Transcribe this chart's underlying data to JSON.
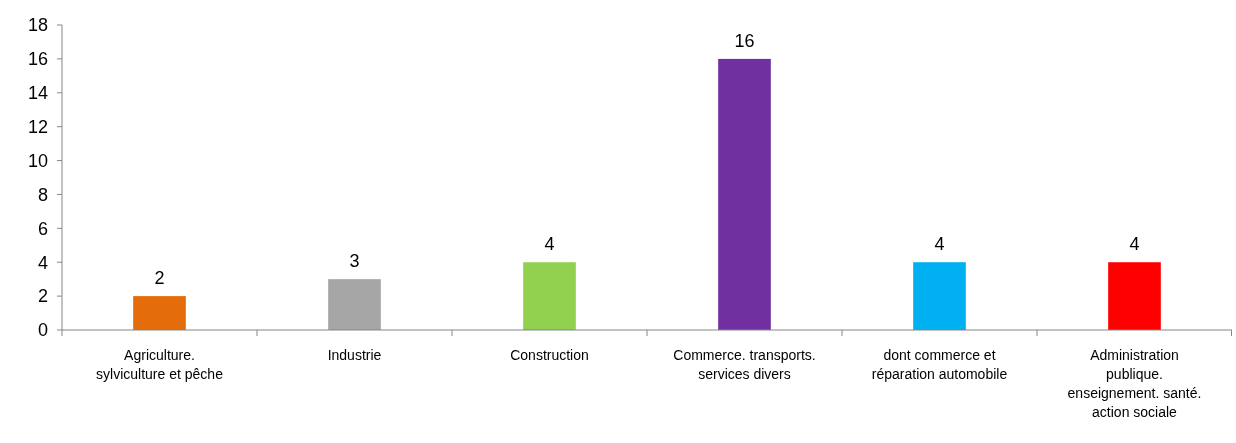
{
  "chart_data": {
    "type": "bar",
    "categories": [
      "Agriculture. sylviculture et pêche",
      "Industrie",
      "Construction",
      "Commerce. transports. services divers",
      "dont commerce et réparation automobile",
      "Administration publique. enseignement. santé. action sociale"
    ],
    "values": [
      2,
      3,
      4,
      16,
      4,
      4
    ],
    "colors": [
      "#e46c0a",
      "#a6a6a6",
      "#92d050",
      "#7030a0",
      "#00b0f0",
      "#ff0000"
    ],
    "ylim": [
      0,
      18
    ],
    "yticks": [
      0,
      2,
      4,
      6,
      8,
      10,
      12,
      14,
      16,
      18
    ],
    "data_labels": true
  }
}
